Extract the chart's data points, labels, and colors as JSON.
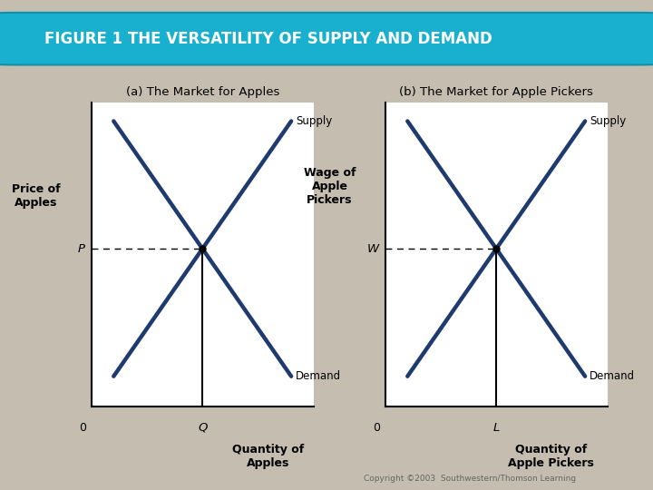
{
  "title": "FIGURE 1 THE VERSATILITY OF SUPPLY AND DEMAND",
  "title_bg_color": "#19b0d0",
  "title_text_color": "#ffffff",
  "background_color": "#c5bdb0",
  "chart_bg_color": "#ffffff",
  "panel_a_title": "(a) The Market for Apples",
  "panel_b_title": "(b) The Market for Apple Pickers",
  "panel_a_ylabel_line1": "Price of",
  "panel_a_ylabel_line2": "Apples",
  "panel_b_ylabel_line1": "Wage of",
  "panel_b_ylabel_line2": "Apple",
  "panel_b_ylabel_line3": "Pickers",
  "panel_a_xlabel_line1": "Quantity of",
  "panel_a_xlabel_line2": "Apples",
  "panel_b_xlabel_line1": "Quantity of",
  "panel_b_xlabel_line2": "Apple Pickers",
  "panel_a_eq_label": "P",
  "panel_b_eq_label": "W",
  "panel_a_qty_label": "Q",
  "panel_b_qty_label": "L",
  "zero_label": "0",
  "supply_label": "Supply",
  "demand_label": "Demand",
  "line_color": "#1e3a6e",
  "line_width": 3.2,
  "dashed_color": "#555555",
  "copyright": "Copyright ©2003  Southwestern/Thomson Learning",
  "eq_x": 5.0,
  "eq_y": 5.2,
  "xlim": [
    0,
    10
  ],
  "ylim": [
    0,
    10
  ]
}
